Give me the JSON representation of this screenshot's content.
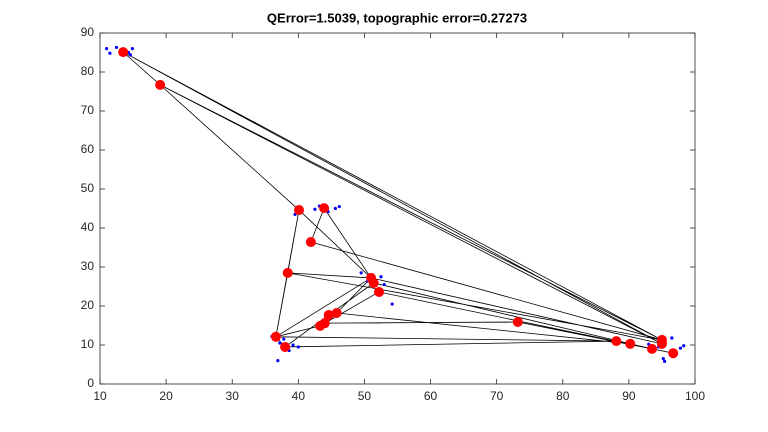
{
  "chart_data": {
    "type": "scatter",
    "title": "QError=1.5039, topographic error=0.27273",
    "xlim": [
      10,
      100
    ],
    "xticks": [
      10,
      20,
      30,
      40,
      50,
      60,
      70,
      80,
      90,
      100
    ],
    "ylim": [
      0,
      90
    ],
    "yticks": [
      0,
      10,
      20,
      30,
      40,
      50,
      60,
      70,
      80,
      90
    ],
    "series": [
      {
        "kind": "line",
        "color": "#000000",
        "x": [
          13.5,
          19.1,
          null,
          13.5,
          95,
          null,
          13.5,
          95,
          null,
          19.1,
          40.1,
          null,
          19.1,
          95,
          null,
          19.1,
          95,
          null,
          40.1,
          36.6,
          null,
          40.1,
          51,
          null,
          43.9,
          51,
          null,
          43.9,
          41.9,
          null,
          41.9,
          95,
          null,
          38.4,
          40.1,
          null,
          38.4,
          36.6,
          null,
          38.4,
          51,
          null,
          38.4,
          95,
          null,
          51,
          95,
          null,
          51.4,
          93.5,
          null,
          52.2,
          96.7,
          null,
          45.8,
          51,
          null,
          44.6,
          51.4,
          null,
          44,
          73.2,
          null,
          43.3,
          52.2,
          null,
          73.2,
          93.5,
          null,
          36.6,
          38,
          null,
          36.6,
          51,
          null,
          38,
          88.1,
          null,
          36.6,
          88.1,
          null,
          45.8,
          90.2,
          null,
          43.3,
          36.6,
          null,
          38,
          44.6
        ],
        "y": [
          85.1,
          76.7,
          null,
          85.1,
          11.3,
          null,
          85.1,
          10.3,
          null,
          76.7,
          44.6,
          null,
          76.7,
          10.3,
          null,
          76.7,
          11.3,
          null,
          44.6,
          12.1,
          null,
          44.6,
          27.2,
          null,
          45.1,
          27.2,
          null,
          45.1,
          36.4,
          null,
          36.4,
          11.3,
          null,
          28.5,
          44.6,
          null,
          28.5,
          12.1,
          null,
          28.5,
          27.2,
          null,
          28.5,
          11.3,
          null,
          27.2,
          10.3,
          null,
          25.9,
          9,
          null,
          23.6,
          7.9,
          null,
          18.2,
          27.2,
          null,
          17.7,
          25.9,
          null,
          15.6,
          15.9,
          null,
          14.9,
          23.6,
          null,
          15.9,
          9,
          null,
          12.1,
          9.5,
          null,
          12.1,
          27.2,
          null,
          9.5,
          11,
          null,
          12.1,
          11,
          null,
          18.2,
          10.3,
          null,
          14.9,
          12.1,
          null,
          9.5,
          17.7
        ]
      },
      {
        "kind": "points",
        "color": "#0000ff",
        "size": 1.6,
        "x": [
          11,
          11.5,
          12.5,
          13.8,
          14.3,
          14.6,
          14.9,
          39.5,
          42.5,
          43.2,
          44.5,
          45.6,
          46.2,
          49.5,
          50.5,
          51.2,
          52.5,
          53,
          54.2,
          36,
          36.9,
          37.2,
          37.8,
          38.6,
          39.2,
          40,
          93,
          94.5,
          95.2,
          95.4,
          96.5,
          97.8,
          98.3
        ],
        "y": [
          86,
          84.8,
          86.3,
          85.5,
          85,
          84.4,
          86,
          43.5,
          44.8,
          45.6,
          44.2,
          45,
          45.5,
          28.5,
          26.4,
          28,
          27.5,
          25.5,
          20.5,
          12.2,
          6,
          10.5,
          11.5,
          8.6,
          10,
          9.5,
          10.2,
          9.5,
          6.5,
          5.8,
          11.8,
          9.2,
          9.8
        ]
      },
      {
        "kind": "points",
        "color": "#ff0000",
        "size": 5,
        "x": [
          13.5,
          19.1,
          40.1,
          43.9,
          41.9,
          38.4,
          51,
          51.4,
          52.2,
          45.8,
          44.6,
          44,
          43.3,
          73.2,
          36.6,
          38,
          88.1,
          90.2,
          95,
          95,
          93.5,
          96.7
        ],
        "y": [
          85.1,
          76.7,
          44.6,
          45.1,
          36.4,
          28.5,
          27.2,
          25.9,
          23.6,
          18.2,
          17.7,
          15.6,
          14.9,
          15.9,
          12.1,
          9.5,
          11,
          10.3,
          11.3,
          10.3,
          9,
          7.9
        ]
      }
    ]
  }
}
